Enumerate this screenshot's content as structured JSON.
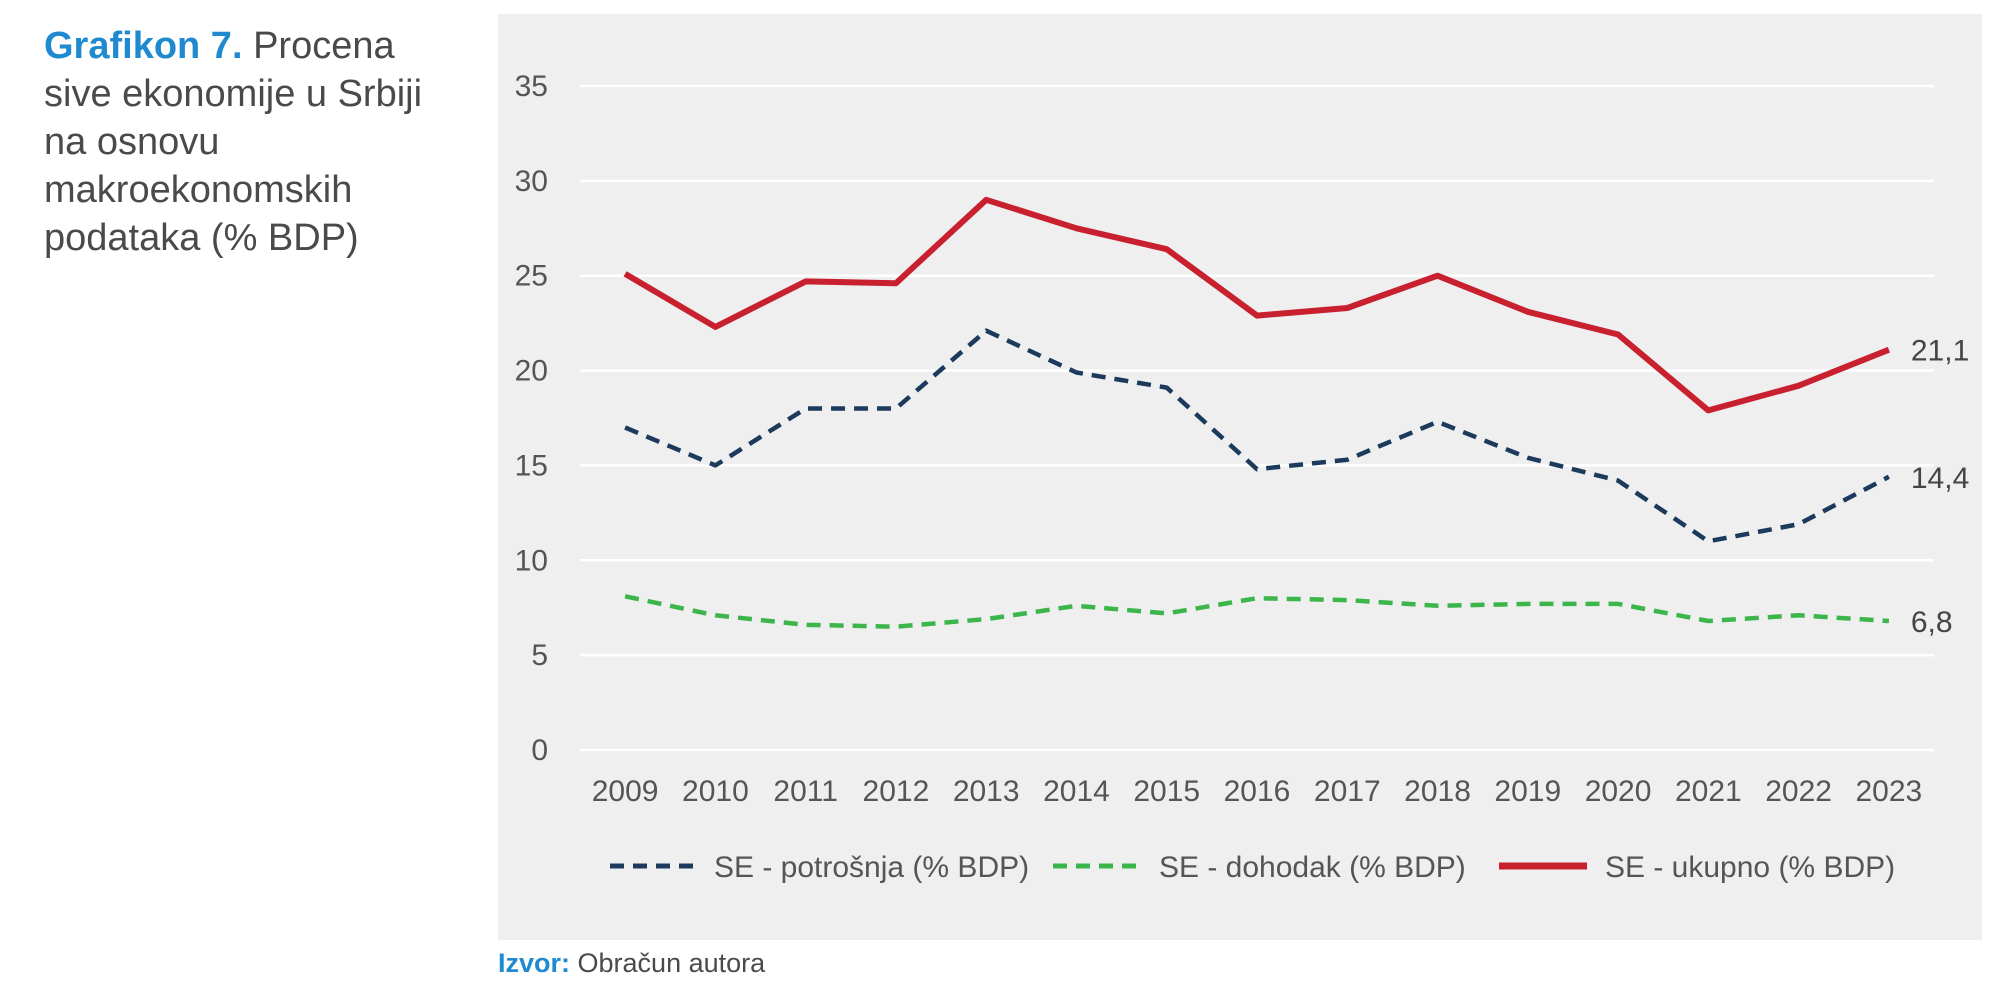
{
  "caption": {
    "lead": "Grafikon 7.",
    "text": "Procena sive ekonomije u Srbiji na osnovu makroekonomskih podataka (% BDP)"
  },
  "source": {
    "lead": "Izvor:",
    "text": "Obračun autora"
  },
  "colors": {
    "background": "#efefef",
    "grid": "#ffffff",
    "potrosnja": "#1b3a5c",
    "dohodak": "#3cb54a",
    "ukupno": "#c8202f",
    "accent": "#1f8ad0"
  },
  "chart_data": {
    "type": "line",
    "categories": [
      "2009",
      "2010",
      "2011",
      "2012",
      "2013",
      "2014",
      "2015",
      "2016",
      "2017",
      "2018",
      "2019",
      "2020",
      "2021",
      "2022",
      "2023"
    ],
    "ylim": [
      0,
      35
    ],
    "yticks": [
      0,
      5,
      10,
      15,
      20,
      25,
      30,
      35
    ],
    "grid": true,
    "legend_position": "bottom",
    "series": [
      {
        "name": "SE - potrošnja (% BDP)",
        "style": "dashed",
        "color": "#1b3a5c",
        "values": [
          17.0,
          15.0,
          18.0,
          18.0,
          22.1,
          19.9,
          19.1,
          14.8,
          15.3,
          17.3,
          15.4,
          14.2,
          11.0,
          11.9,
          14.4
        ],
        "end_label": "14,4"
      },
      {
        "name": "SE - dohodak (% BDP)",
        "style": "dashed",
        "color": "#3cb54a",
        "values": [
          8.1,
          7.1,
          6.6,
          6.5,
          6.9,
          7.6,
          7.2,
          8.0,
          7.9,
          7.6,
          7.7,
          7.7,
          6.8,
          7.1,
          6.8
        ],
        "end_label": "6,8"
      },
      {
        "name": "SE - ukupno (% BDP)",
        "style": "solid",
        "color": "#c8202f",
        "values": [
          25.1,
          22.3,
          24.7,
          24.6,
          29.0,
          27.5,
          26.4,
          22.9,
          23.3,
          25.0,
          23.1,
          21.9,
          17.9,
          19.2,
          21.1
        ],
        "end_label": "21,1"
      }
    ]
  }
}
